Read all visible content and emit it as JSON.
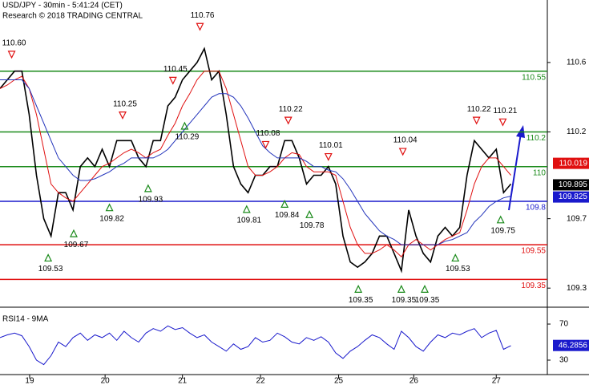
{
  "chart_data": [
    {
      "type": "line",
      "title": "USD/JPY - 30min - 5:41:24 (CET)",
      "subtitle": "Research © 2018 TRADING CENTRAL",
      "x": [
        0,
        1,
        2,
        3,
        4,
        5,
        6,
        7,
        8,
        9,
        10,
        11,
        12,
        13,
        14,
        15,
        16,
        17,
        18,
        19,
        20,
        21,
        22,
        23,
        24,
        25,
        26,
        27,
        28,
        29,
        30,
        31,
        32,
        33,
        34,
        35,
        36,
        37,
        38,
        39,
        40,
        41,
        42,
        43,
        44,
        45,
        46,
        47,
        48,
        49,
        50,
        51,
        52,
        53,
        54,
        55,
        56,
        57,
        58,
        59,
        60,
        61,
        62,
        63,
        64,
        65,
        66,
        67,
        68,
        69,
        70
      ],
      "xlim": [
        0,
        75
      ],
      "xticks": [
        {
          "value": 4.06,
          "label": "19"
        },
        {
          "value": 14.4,
          "label": "20"
        },
        {
          "value": 25.0,
          "label": "21"
        },
        {
          "value": 35.7,
          "label": "22"
        },
        {
          "value": 46.4,
          "label": "25"
        },
        {
          "value": 56.7,
          "label": "26"
        },
        {
          "value": 68.0,
          "label": "27"
        }
      ],
      "ylim": [
        109.19,
        110.96
      ],
      "yticks": [
        110.6,
        110.2,
        109.7,
        109.3
      ],
      "series": [
        {
          "color": "#000000",
          "values": [
            110.45,
            110.5,
            110.55,
            110.55,
            110.3,
            109.95,
            109.7,
            109.6,
            109.85,
            109.85,
            109.75,
            110.0,
            110.05,
            110.0,
            110.1,
            110.0,
            110.15,
            110.15,
            110.15,
            110.05,
            110.0,
            110.15,
            110.15,
            110.35,
            110.4,
            110.5,
            110.55,
            110.6,
            110.68,
            110.5,
            110.55,
            110.3,
            110.0,
            109.9,
            109.85,
            109.95,
            109.95,
            110.0,
            110.0,
            110.15,
            110.15,
            110.05,
            109.9,
            109.95,
            109.95,
            110.0,
            109.9,
            109.6,
            109.45,
            109.42,
            109.45,
            109.5,
            109.6,
            109.6,
            109.5,
            109.4,
            109.75,
            109.6,
            109.5,
            109.45,
            109.6,
            109.65,
            109.6,
            109.65,
            109.95,
            110.15,
            110.1,
            110.05,
            110.1,
            109.85,
            109.9
          ]
        },
        {
          "color": "#e01010",
          "values": [
            110.45,
            110.47,
            110.5,
            110.52,
            110.45,
            110.3,
            110.1,
            109.9,
            109.85,
            109.82,
            109.8,
            109.85,
            109.9,
            109.95,
            110.0,
            110.02,
            110.05,
            110.08,
            110.1,
            110.08,
            110.05,
            110.08,
            110.1,
            110.18,
            110.25,
            110.35,
            110.42,
            110.5,
            110.55,
            110.55,
            110.55,
            110.45,
            110.3,
            110.15,
            110.0,
            109.95,
            109.95,
            109.97,
            110.0,
            110.05,
            110.08,
            110.07,
            110.0,
            109.97,
            109.97,
            109.97,
            109.95,
            109.8,
            109.65,
            109.55,
            109.5,
            109.5,
            109.52,
            109.55,
            109.52,
            109.48,
            109.55,
            109.58,
            109.55,
            109.52,
            109.55,
            109.58,
            109.6,
            109.62,
            109.75,
            109.9,
            110.0,
            110.05,
            110.05,
            110.0,
            109.95
          ]
        },
        {
          "color": "#2233bb",
          "values": [
            110.5,
            110.5,
            110.5,
            110.5,
            110.45,
            110.35,
            110.25,
            110.15,
            110.05,
            110.0,
            109.95,
            109.92,
            109.92,
            109.93,
            109.95,
            109.97,
            110.0,
            110.02,
            110.05,
            110.05,
            110.05,
            110.05,
            110.07,
            110.1,
            110.15,
            110.2,
            110.25,
            110.3,
            110.35,
            110.4,
            110.42,
            110.42,
            110.4,
            110.35,
            110.28,
            110.2,
            110.12,
            110.08,
            110.05,
            110.05,
            110.05,
            110.05,
            110.03,
            110.0,
            110.0,
            109.98,
            109.97,
            109.93,
            109.87,
            109.8,
            109.73,
            109.68,
            109.63,
            109.6,
            109.58,
            109.55,
            109.55,
            109.55,
            109.55,
            109.55,
            109.55,
            109.57,
            109.58,
            109.6,
            109.62,
            109.68,
            109.72,
            109.77,
            109.8,
            109.82,
            109.83
          ]
        }
      ],
      "levels": [
        {
          "value": 110.55,
          "color": "#1a8a1a"
        },
        {
          "value": 110.2,
          "color": "#1a8a1a"
        },
        {
          "value": 110,
          "color": "#1a8a1a"
        },
        {
          "value": 109.8,
          "color": "#1a1acc"
        },
        {
          "value": 109.55,
          "color": "#e01010"
        },
        {
          "value": 109.35,
          "color": "#e01010"
        }
      ],
      "price_tags": [
        {
          "value": 110.019,
          "color": "#e01010"
        },
        {
          "value": 109.895,
          "color": "#000000"
        },
        {
          "value": 109.825,
          "color": "#1a1acc"
        }
      ],
      "swings": [
        {
          "kind": "high",
          "x": 1.6,
          "value": 110.6,
          "label": "110.60"
        },
        {
          "kind": "high",
          "x": 16.8,
          "value": 110.25,
          "label": "110.25"
        },
        {
          "kind": "high",
          "x": 23.7,
          "value": 110.45,
          "label": "110.45"
        },
        {
          "kind": "high",
          "x": 27.4,
          "value": 110.76,
          "label": "110.76"
        },
        {
          "kind": "high",
          "x": 36.4,
          "value": 110.08,
          "label": "110.08"
        },
        {
          "kind": "high",
          "x": 39.5,
          "value": 110.22,
          "label": "110.22"
        },
        {
          "kind": "high",
          "x": 45.0,
          "value": 110.01,
          "label": "110.01"
        },
        {
          "kind": "high",
          "x": 55.2,
          "value": 110.04,
          "label": "110.04"
        },
        {
          "kind": "high",
          "x": 65.3,
          "value": 110.22,
          "label": "110.22"
        },
        {
          "kind": "high",
          "x": 68.9,
          "value": 110.21,
          "label": "110.21"
        },
        {
          "kind": "low",
          "x": 6.6,
          "value": 109.53,
          "label": "109.53"
        },
        {
          "kind": "low",
          "x": 10.1,
          "value": 109.67,
          "label": "109.67"
        },
        {
          "kind": "low",
          "x": 15.0,
          "value": 109.82,
          "label": "109.82"
        },
        {
          "kind": "low",
          "x": 20.3,
          "value": 109.93,
          "label": "109.93"
        },
        {
          "kind": "low",
          "x": 25.3,
          "value": 110.29,
          "label": "110.29"
        },
        {
          "kind": "low",
          "x": 33.8,
          "value": 109.81,
          "label": "109.81"
        },
        {
          "kind": "low",
          "x": 39.0,
          "value": 109.84,
          "label": "109.84"
        },
        {
          "kind": "low",
          "x": 42.4,
          "value": 109.78,
          "label": "109.78"
        },
        {
          "kind": "low",
          "x": 49.1,
          "value": 109.35,
          "label": "109.35"
        },
        {
          "kind": "low",
          "x": 55.0,
          "value": 109.35,
          "label": "109.35"
        },
        {
          "kind": "low",
          "x": 58.2,
          "value": 109.35,
          "label": "109.35"
        },
        {
          "kind": "low",
          "x": 62.4,
          "value": 109.53,
          "label": "109.53"
        },
        {
          "kind": "low",
          "x": 68.6,
          "value": 109.75,
          "label": "109.75"
        }
      ]
    },
    {
      "type": "line",
      "title": "RSI14 - 9MA",
      "x": [
        0,
        1,
        2,
        3,
        4,
        5,
        6,
        7,
        8,
        9,
        10,
        11,
        12,
        13,
        14,
        15,
        16,
        17,
        18,
        19,
        20,
        21,
        22,
        23,
        24,
        25,
        26,
        27,
        28,
        29,
        30,
        31,
        32,
        33,
        34,
        35,
        36,
        37,
        38,
        39,
        40,
        41,
        42,
        43,
        44,
        45,
        46,
        47,
        48,
        49,
        50,
        51,
        52,
        53,
        54,
        55,
        56,
        57,
        58,
        59,
        60,
        61,
        62,
        63,
        64,
        65,
        66,
        67,
        68,
        69,
        70
      ],
      "xlim": [
        0,
        75
      ],
      "ylim": [
        14,
        88.7
      ],
      "yticks": [
        70,
        30
      ],
      "series": [
        {
          "color": "#1a1acc",
          "values": [
            55,
            58,
            60,
            57,
            45,
            30,
            25,
            35,
            50,
            45,
            55,
            60,
            52,
            58,
            55,
            60,
            52,
            62,
            55,
            50,
            60,
            65,
            62,
            68,
            64,
            66,
            60,
            55,
            58,
            50,
            45,
            40,
            48,
            42,
            45,
            55,
            50,
            52,
            60,
            56,
            50,
            48,
            55,
            52,
            56,
            50,
            38,
            32,
            40,
            45,
            52,
            58,
            55,
            48,
            42,
            62,
            55,
            45,
            40,
            50,
            58,
            55,
            60,
            58,
            62,
            65,
            55,
            60,
            63,
            42,
            46
          ]
        }
      ],
      "tag": {
        "value": 46.2856,
        "color": "#1a1acc"
      }
    }
  ]
}
